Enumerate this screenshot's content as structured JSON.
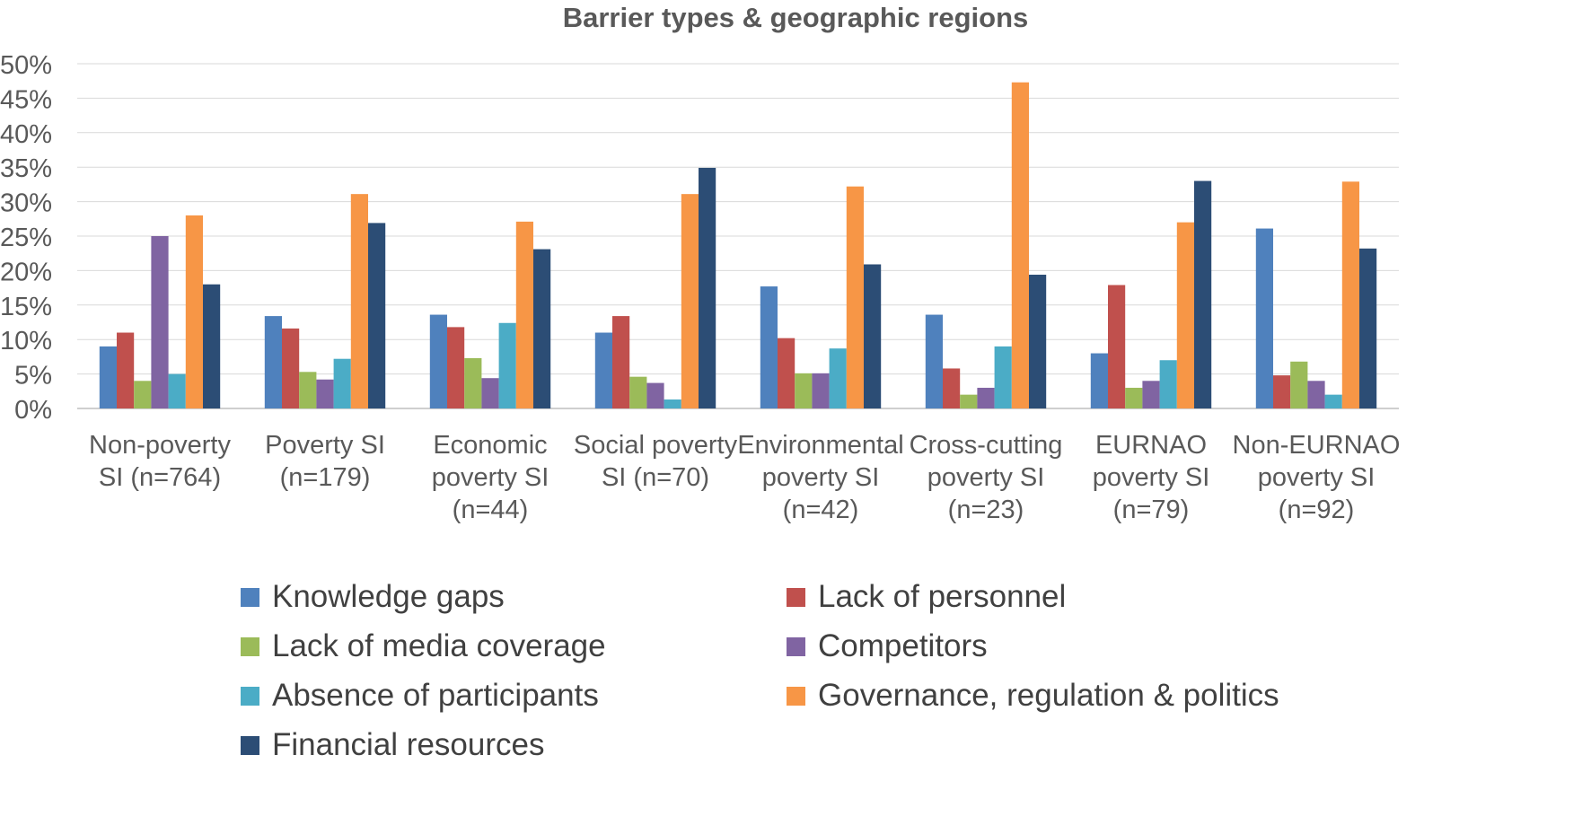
{
  "chart_data": {
    "type": "bar",
    "title": "Barrier types & geographic regions",
    "xlabel": "",
    "ylabel": "",
    "ylim": [
      0,
      50
    ],
    "y_ticks": [
      "0%",
      "5%",
      "10%",
      "15%",
      "20%",
      "25%",
      "30%",
      "35%",
      "40%",
      "45%",
      "50%"
    ],
    "grid": true,
    "legend_position": "bottom",
    "categories": [
      [
        "Non-poverty",
        "SI (n=764)"
      ],
      [
        "Poverty SI",
        "(n=179)"
      ],
      [
        "Economic",
        "poverty SI",
        "(n=44)"
      ],
      [
        "Social poverty",
        "SI (n=70)"
      ],
      [
        "Environmental",
        "poverty SI",
        "(n=42)"
      ],
      [
        "Cross-cutting",
        "poverty SI",
        "(n=23)"
      ],
      [
        "EURNAO",
        "poverty SI",
        "(n=79)"
      ],
      [
        "Non-EURNAO",
        "poverty SI",
        "(n=92)"
      ]
    ],
    "series": [
      {
        "name": "Knowledge gaps",
        "color": "#4F81BD",
        "values": [
          9,
          13.4,
          13.6,
          11,
          17.7,
          13.6,
          8,
          26.1
        ]
      },
      {
        "name": "Lack of personnel",
        "color": "#C0504D",
        "values": [
          11,
          11.6,
          11.8,
          13.4,
          10.2,
          5.8,
          17.9,
          4.8
        ]
      },
      {
        "name": "Lack of media coverage",
        "color": "#9BBB59",
        "values": [
          4,
          5.3,
          7.3,
          4.6,
          5.1,
          2,
          3,
          6.8
        ]
      },
      {
        "name": "Competitors",
        "color": "#8064A2",
        "values": [
          25,
          4.2,
          4.4,
          3.7,
          5.1,
          3,
          4,
          4
        ]
      },
      {
        "name": "Absence of participants",
        "color": "#4BACC6",
        "values": [
          5,
          7.2,
          12.4,
          1.3,
          8.7,
          9,
          7,
          2
        ]
      },
      {
        "name": "Governance, regulation & politics",
        "color": "#F79646",
        "values": [
          28,
          31.1,
          27.1,
          31.1,
          32.2,
          47.3,
          27,
          32.9
        ]
      },
      {
        "name": "Financial resources",
        "color": "#2C4D75",
        "values": [
          18,
          26.9,
          23.1,
          34.9,
          20.9,
          19.4,
          33,
          23.2
        ]
      }
    ]
  }
}
